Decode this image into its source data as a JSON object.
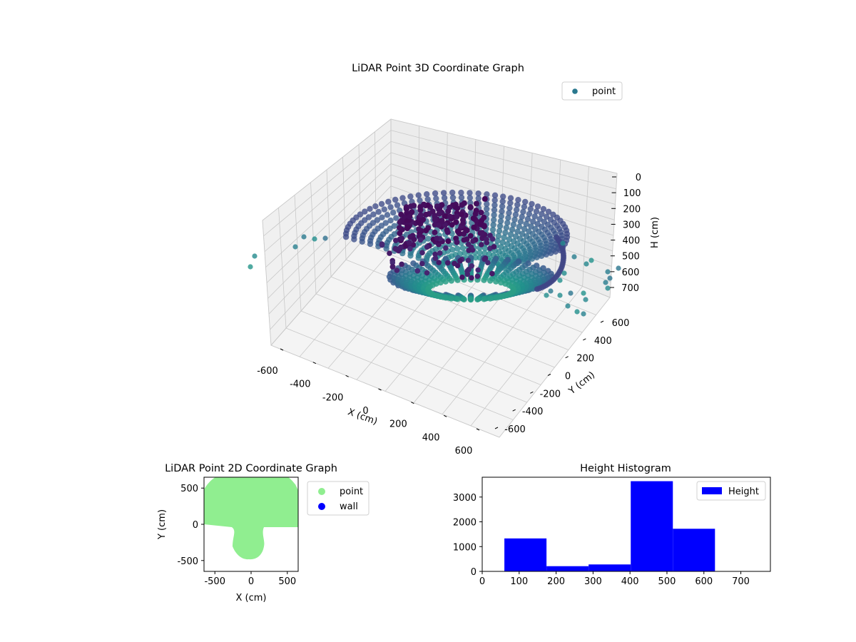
{
  "colors": {
    "point3d": "#2a788e",
    "point2d": "#90ee90",
    "wall": "#0000ff",
    "hist_bar": "#0000ff",
    "pane": "#f2f2f2"
  },
  "chart_data": [
    {
      "type": "scatter",
      "title": "LiDAR Point 3D Coordinate Graph",
      "xlabel": "X (cm)",
      "ylabel": "Y (cm)",
      "zlabel": "H (cm)",
      "x_ticks": [
        -600,
        -400,
        -200,
        0,
        200,
        400,
        600
      ],
      "y_ticks": [
        -600,
        -400,
        -200,
        0,
        200,
        400,
        600
      ],
      "z_ticks": [
        0,
        100,
        200,
        300,
        400,
        500,
        600,
        700
      ],
      "z_inverted": true,
      "legend": [
        {
          "name": "point"
        }
      ],
      "legend_position": "upper-right",
      "grid": true
    },
    {
      "type": "scatter",
      "title": "LiDAR Point 2D Coordinate Graph",
      "xlabel": "X (cm)",
      "ylabel": "Y (cm)",
      "xlim": [
        -650,
        650
      ],
      "ylim": [
        -650,
        650
      ],
      "x_ticks": [
        -500,
        0,
        500
      ],
      "y_ticks": [
        -500,
        0,
        500
      ],
      "legend": [
        {
          "name": "point"
        },
        {
          "name": "wall"
        }
      ],
      "legend_position": "outside-right"
    },
    {
      "type": "bar",
      "title": "Height Histogram",
      "legend": [
        {
          "name": "Height"
        }
      ],
      "legend_position": "upper-right",
      "xlim": [
        0,
        780
      ],
      "ylim": [
        0,
        3800
      ],
      "x_ticks": [
        0,
        100,
        200,
        300,
        400,
        500,
        600,
        700
      ],
      "y_ticks": [
        0,
        1000,
        2000,
        3000
      ],
      "bins": [
        {
          "start": 60,
          "end": 174,
          "value": 1330
        },
        {
          "start": 174,
          "end": 288,
          "value": 210
        },
        {
          "start": 288,
          "end": 402,
          "value": 280
        },
        {
          "start": 402,
          "end": 516,
          "value": 3640
        },
        {
          "start": 516,
          "end": 630,
          "value": 1720
        }
      ]
    }
  ]
}
